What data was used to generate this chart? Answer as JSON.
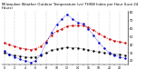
{
  "title": "Milwaukee Weather Outdoor Temperature (vs) THSW Index per Hour (Last 24 Hours)",
  "title_fontsize": 2.8,
  "figsize": [
    1.6,
    0.87
  ],
  "dpi": 100,
  "background_color": "#ffffff",
  "hours": [
    0,
    1,
    2,
    3,
    4,
    5,
    6,
    7,
    8,
    9,
    10,
    11,
    12,
    13,
    14,
    15,
    16,
    17,
    18,
    19,
    20,
    21,
    22,
    23
  ],
  "temp": [
    42,
    40,
    38,
    36,
    35,
    34,
    35,
    38,
    44,
    52,
    57,
    60,
    63,
    64,
    64,
    64,
    62,
    58,
    54,
    50,
    47,
    45,
    44,
    42
  ],
  "thsw": [
    32,
    28,
    25,
    22,
    20,
    18,
    20,
    28,
    42,
    55,
    65,
    72,
    78,
    72,
    68,
    66,
    60,
    52,
    43,
    36,
    30,
    27,
    25,
    23
  ],
  "dew": [
    30,
    28,
    27,
    26,
    25,
    24,
    25,
    27,
    30,
    33,
    35,
    36,
    37,
    36,
    36,
    35,
    34,
    32,
    31,
    30,
    29,
    28,
    28,
    27
  ],
  "temp_color": "#cc0000",
  "thsw_color": "#0000cc",
  "dew_color": "#000000",
  "ylim": [
    15,
    82
  ],
  "yticks": [
    20,
    30,
    40,
    50,
    60,
    70,
    80
  ],
  "grid_color": "#999999",
  "ylabel_fontsize": 2.5,
  "xlabel_fontsize": 2.3,
  "line_width": 0.5
}
